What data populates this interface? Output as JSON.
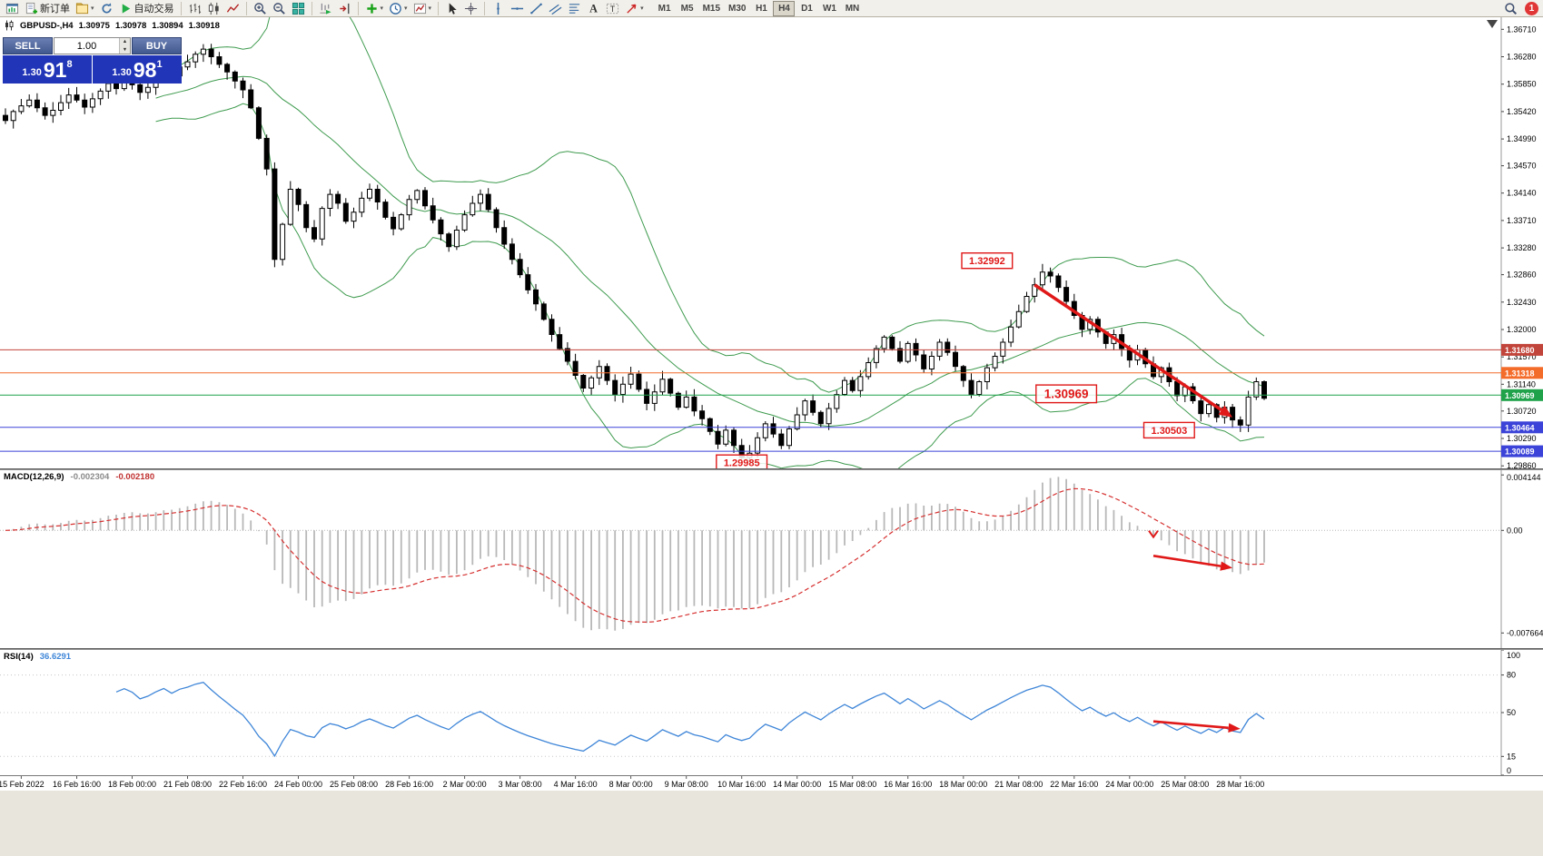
{
  "colors": {
    "chart_bg": "#ffffff",
    "bollinger": "#3f9b4f",
    "candle_up": "#ffffff",
    "candle_down": "#000000",
    "macd_hist": "#b8b8b8",
    "macd_signal": "#d63030",
    "rsi_line": "#3f86d8",
    "annotation_red": "#e01818",
    "trade_button_bg": "linear-gradient(#6b7fb3,#41598f)",
    "trade_price_bg": "#2135b8",
    "notification_red": "#e03636"
  },
  "toolbar": {
    "groups": [
      {
        "items": [
          {
            "icon": "new-chart"
          },
          {
            "icon": "new-order",
            "label": "新订单"
          },
          {
            "icon": "profiles",
            "caret": true
          },
          {
            "icon": "refresh"
          },
          {
            "icon": "autotrading",
            "label": "自动交易"
          }
        ]
      },
      {
        "items": [
          {
            "icon": "bar-chart"
          },
          {
            "icon": "candles"
          },
          {
            "icon": "line-chart"
          }
        ]
      },
      {
        "items": [
          {
            "icon": "zoom-in"
          },
          {
            "icon": "zoom-out"
          },
          {
            "icon": "tile-windows"
          }
        ]
      },
      {
        "items": [
          {
            "icon": "auto-scroll"
          },
          {
            "icon": "chart-shift"
          }
        ]
      },
      {
        "items": [
          {
            "icon": "indicators",
            "caret": true
          },
          {
            "icon": "periods",
            "caret": true
          },
          {
            "icon": "templates",
            "caret": true
          }
        ]
      },
      {
        "items": [
          {
            "icon": "cursor"
          },
          {
            "icon": "crosshair"
          }
        ]
      },
      {
        "items": [
          {
            "icon": "vertical-line"
          },
          {
            "icon": "horizontal-line"
          },
          {
            "icon": "trendline"
          },
          {
            "icon": "channel"
          },
          {
            "icon": "fibonacci"
          },
          {
            "icon": "text"
          },
          {
            "icon": "text-label"
          },
          {
            "icon": "arrows",
            "caret": true
          }
        ]
      }
    ],
    "timeframes": [
      "M1",
      "M5",
      "M15",
      "M30",
      "H1",
      "H4",
      "D1",
      "W1",
      "MN"
    ],
    "active_timeframe": "H4",
    "notification_count": "1"
  },
  "symbol_info": {
    "symbol": "GBPUSD-,H4",
    "open": "1.30975",
    "high": "1.30978",
    "low": "1.30894",
    "close": "1.30918"
  },
  "trade_widget": {
    "sell_label": "SELL",
    "buy_label": "BUY",
    "volume": "1.00",
    "sell_price_small": "1.30",
    "sell_price_big": "91",
    "sell_price_sup": "8",
    "buy_price_small": "1.30",
    "buy_price_big": "98",
    "buy_price_sup": "1"
  },
  "indicator_labels": {
    "macd_name": "MACD(12,26,9)",
    "macd_value_1": "-0.002304",
    "macd_value_2": "-0.002180",
    "rsi_name": "RSI(14)",
    "rsi_value": "36.6291"
  },
  "chart_data": [
    {
      "type": "candlestick",
      "title": "GBPUSD- H4",
      "y_range": [
        1.2982,
        1.369
      ],
      "y_ticks": [
        "1.36710",
        "1.36280",
        "1.35850",
        "1.35420",
        "1.34990",
        "1.34570",
        "1.34140",
        "1.33710",
        "1.33280",
        "1.32860",
        "1.32430",
        "1.32000",
        "1.31570",
        "1.31140",
        "1.30720",
        "1.30290",
        "1.29860"
      ],
      "x_labels": [
        "15 Feb 2022",
        "16 Feb 16:00",
        "18 Feb 00:00",
        "21 Feb 08:00",
        "22 Feb 16:00",
        "24 Feb 00:00",
        "25 Feb 08:00",
        "28 Feb 16:00",
        "2 Mar 00:00",
        "3 Mar 08:00",
        "4 Mar 16:00",
        "8 Mar 00:00",
        "9 Mar 08:00",
        "10 Mar 16:00",
        "14 Mar 00:00",
        "15 Mar 08:00",
        "16 Mar 16:00",
        "18 Mar 00:00",
        "21 Mar 08:00",
        "22 Mar 16:00",
        "24 Mar 00:00",
        "25 Mar 08:00",
        "28 Mar 16:00"
      ],
      "closes": [
        1.3528,
        1.3542,
        1.3551,
        1.356,
        1.3548,
        1.3536,
        1.3544,
        1.3556,
        1.3568,
        1.356,
        1.3549,
        1.3562,
        1.3574,
        1.3586,
        1.3578,
        1.359,
        1.3584,
        1.3572,
        1.358,
        1.3594,
        1.3606,
        1.3598,
        1.3612,
        1.362,
        1.3632,
        1.364,
        1.3628,
        1.3616,
        1.3604,
        1.359,
        1.3576,
        1.3548,
        1.35,
        1.3452,
        1.331,
        1.3365,
        1.342,
        1.3396,
        1.336,
        1.3342,
        1.339,
        1.3412,
        1.3398,
        1.337,
        1.3384,
        1.3406,
        1.342,
        1.34,
        1.3376,
        1.3358,
        1.338,
        1.3404,
        1.3418,
        1.3394,
        1.3372,
        1.335,
        1.333,
        1.3356,
        1.338,
        1.3398,
        1.3412,
        1.3388,
        1.336,
        1.3334,
        1.331,
        1.3286,
        1.3262,
        1.324,
        1.3216,
        1.3192,
        1.317,
        1.315,
        1.3128,
        1.3108,
        1.3124,
        1.3142,
        1.312,
        1.3098,
        1.3114,
        1.313,
        1.3106,
        1.3084,
        1.3102,
        1.3122,
        1.31,
        1.3078,
        1.3094,
        1.3072,
        1.306,
        1.304,
        1.302,
        1.3042,
        1.3018,
        1.2999,
        1.3006,
        1.303,
        1.3052,
        1.3036,
        1.3018,
        1.3044,
        1.3066,
        1.3088,
        1.307,
        1.3052,
        1.3076,
        1.3098,
        1.312,
        1.3104,
        1.3126,
        1.3148,
        1.317,
        1.3188,
        1.317,
        1.315,
        1.3178,
        1.316,
        1.3138,
        1.3158,
        1.318,
        1.3164,
        1.3142,
        1.312,
        1.3098,
        1.3118,
        1.314,
        1.3158,
        1.318,
        1.3204,
        1.3228,
        1.3252,
        1.327,
        1.329,
        1.3284,
        1.3266,
        1.3244,
        1.3222,
        1.32,
        1.3216,
        1.3196,
        1.3178,
        1.3192,
        1.317,
        1.3152,
        1.3168,
        1.3146,
        1.3126,
        1.314,
        1.3118,
        1.3096,
        1.311,
        1.3088,
        1.3068,
        1.3082,
        1.3062,
        1.3078,
        1.3058,
        1.305,
        1.3094,
        1.3118,
        1.3092
      ],
      "overlays": [
        "Bollinger Bands (20,2)"
      ],
      "levels": [
        {
          "price": 1.3168,
          "label": "1.31680",
          "color": "#c2453b"
        },
        {
          "price": 1.31318,
          "label": "1.31318",
          "color": "#f46c2a"
        },
        {
          "price": 1.30969,
          "label": "1.30969",
          "color": "#1fa24a"
        },
        {
          "price": 1.30464,
          "label": "1.30464",
          "color": "#3b43d8"
        },
        {
          "price": 1.30089,
          "label": "1.30089",
          "color": "#3b43d8"
        }
      ],
      "annotations": [
        {
          "text": "1.32992",
          "i": 124,
          "price": 1.3308,
          "big": false
        },
        {
          "text": "1.30969",
          "i": 134,
          "price": 1.3099,
          "big": true
        },
        {
          "text": "1.30503",
          "i": 147,
          "price": 1.3042,
          "big": false
        },
        {
          "text": "1.29985",
          "i": 93,
          "price": 1.2991,
          "big": false
        }
      ],
      "trend_arrow": {
        "from_i": 130,
        "from_price": 1.327,
        "to_i": 155,
        "to_price": 1.3062
      }
    },
    {
      "type": "bar",
      "name": "MACD(12,26,9)",
      "params": [
        12,
        26,
        9
      ],
      "display_values": [
        "-0.002304",
        "-0.002180"
      ],
      "y_axis_labels": [
        "0.004144",
        "0.00",
        "-0.007664"
      ],
      "y_range": [
        -0.0088,
        0.0045
      ],
      "derived_from": "closes",
      "arrow": {
        "from_i": 145,
        "from_v": -0.0019,
        "to_i": 155,
        "to_v": -0.0028
      },
      "check": {
        "i": 145,
        "v": -0.0005
      }
    },
    {
      "type": "line",
      "name": "RSI(14)",
      "period": 14,
      "last_value": 36.6291,
      "y_axis_labels": [
        "100",
        "80",
        "50",
        "15",
        "0"
      ],
      "levels": [
        80,
        50,
        15
      ],
      "y_range": [
        0,
        100
      ],
      "derived_from": "closes",
      "arrow": {
        "from_i": 145,
        "from_v": 43,
        "to_i": 156,
        "to_v": 37
      }
    }
  ]
}
